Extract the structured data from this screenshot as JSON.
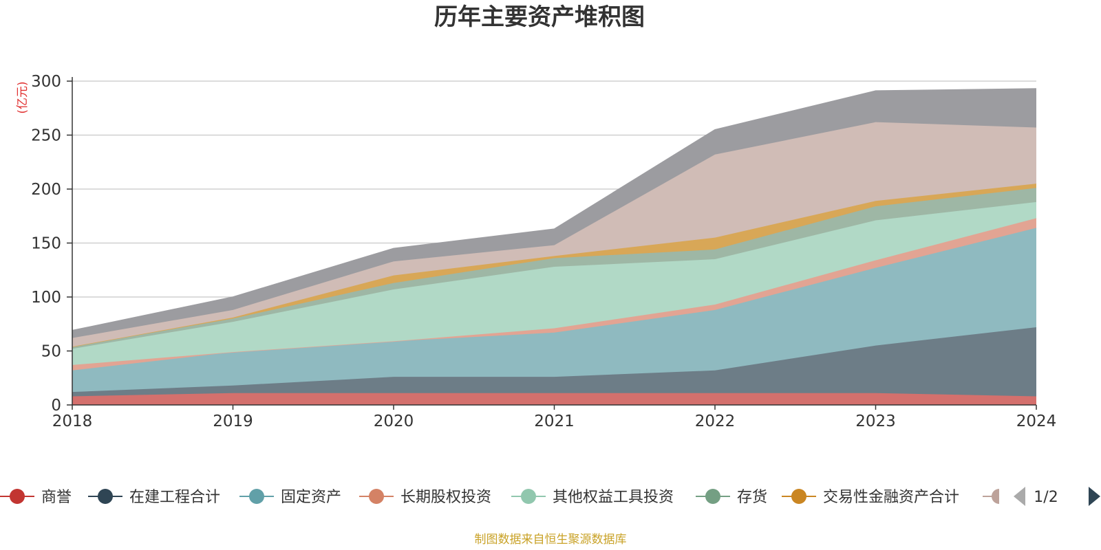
{
  "chart_data": {
    "type": "area",
    "stacked": true,
    "title": "历年主要资产堆积图",
    "unit_label": "(亿元)",
    "source": "制图数据来自恒生聚源数据库",
    "x": [
      "2018",
      "2019",
      "2020",
      "2021",
      "2022",
      "2023",
      "2024"
    ],
    "ylim": [
      0,
      300
    ],
    "yticks": [
      0,
      50,
      100,
      150,
      200,
      250,
      300
    ],
    "grid": true,
    "legend_position": "bottom",
    "legend_page": "1/2",
    "series": [
      {
        "name": "商誉",
        "color": "#c23531",
        "fill": "#d4706d",
        "values": [
          8,
          11,
          11,
          11,
          11,
          11,
          8
        ]
      },
      {
        "name": "在建工程合计",
        "color": "#2f4554",
        "fill": "#6d7d87",
        "values": [
          4,
          7,
          15,
          15,
          21,
          44,
          64
        ]
      },
      {
        "name": "固定资产",
        "color": "#61a0a8",
        "fill": "#8fbac0",
        "values": [
          20,
          31,
          33,
          41,
          56,
          72,
          92
        ]
      },
      {
        "name": "长期股权投资",
        "color": "#d48265",
        "fill": "#e2a493",
        "values": [
          5,
          0,
          0,
          4,
          5,
          7,
          9
        ]
      },
      {
        "name": "其他权益工具投资",
        "color": "#91c7ae",
        "fill": "#b1d9c6",
        "values": [
          15,
          28,
          48,
          57,
          42,
          37,
          15
        ]
      },
      {
        "name": "存货",
        "color": "#749f83",
        "fill": "#9eb7a5",
        "values": [
          2,
          3,
          6,
          8,
          9,
          13,
          13
        ]
      },
      {
        "name": "交易性金融资产合计",
        "color": "#ca8622",
        "fill": "#d8a757",
        "values": [
          0,
          1,
          7,
          2,
          11,
          5,
          4
        ]
      },
      {
        "name": "",
        "color": "#bda29a",
        "fill": "#d0bcb6",
        "values": [
          8,
          7,
          13,
          10,
          77,
          73,
          52
        ]
      },
      {
        "name": "",
        "color": "#6e7074",
        "fill": "#9c9ca0",
        "values": [
          7,
          12,
          12,
          15,
          23,
          29,
          36
        ]
      }
    ]
  }
}
